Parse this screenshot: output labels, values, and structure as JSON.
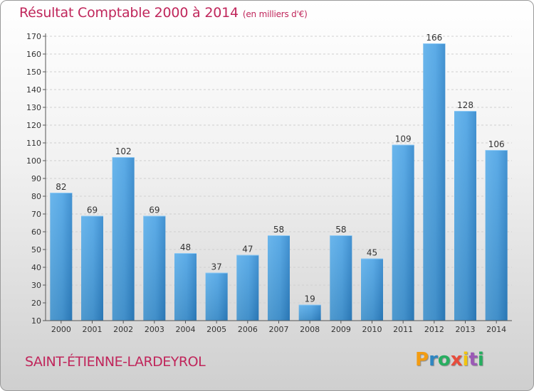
{
  "header": {
    "title": "Résultat Comptable 2000 à 2014",
    "subtitle": "(en milliers d'€)"
  },
  "footer": {
    "commune": "SAINT-ÉTIENNE-LARDEYROL",
    "logo_letters": [
      "P",
      "r",
      "o",
      "x",
      "i",
      "t",
      "i"
    ],
    "logo_colors": [
      "#f39c12",
      "#2e86c1",
      "#27ae60",
      "#e74c3c",
      "#f1c40f",
      "#9b59b6",
      "#27ae60"
    ]
  },
  "colors": {
    "bar_light": "#6ab7ee",
    "bar_dark": "#2a83c8",
    "title": "#c0265b",
    "axis": "#555555",
    "grid": "#cfcfcf"
  },
  "chart_data": {
    "type": "bar",
    "categories": [
      "2000",
      "2001",
      "2002",
      "2003",
      "2004",
      "2005",
      "2006",
      "2007",
      "2008",
      "2009",
      "2010",
      "2011",
      "2012",
      "2013",
      "2014"
    ],
    "values": [
      82,
      69,
      102,
      69,
      48,
      37,
      47,
      58,
      19,
      58,
      45,
      109,
      166,
      128,
      106
    ],
    "ylim": [
      10,
      170
    ],
    "yticks": [
      10,
      20,
      30,
      40,
      50,
      60,
      70,
      80,
      90,
      100,
      110,
      120,
      130,
      140,
      150,
      160,
      170
    ],
    "grid": true,
    "title": "Résultat Comptable 2000 à 2014",
    "xlabel": "",
    "ylabel": ""
  }
}
